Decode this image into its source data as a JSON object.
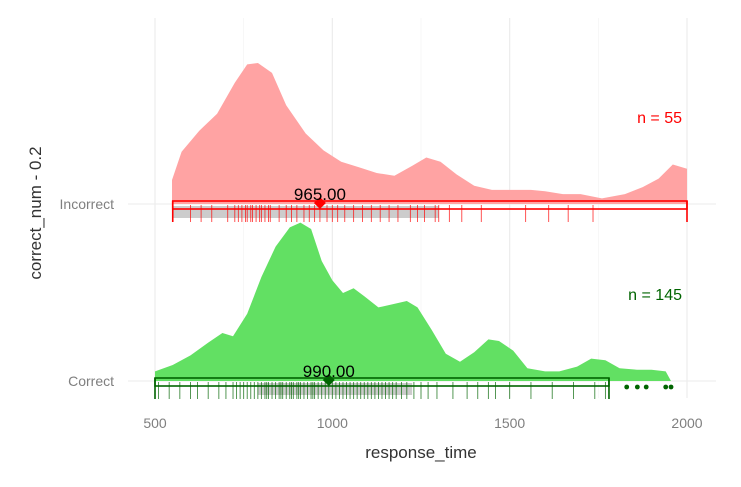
{
  "chart_data": {
    "type": "ridgeline",
    "xlabel": "response_time",
    "ylabel": "correct_num - 0.2",
    "xlim": [
      400,
      2000
    ],
    "xticks": [
      500,
      1000,
      1500,
      2000
    ],
    "xtick_labels": [
      "500",
      "1000",
      "1500",
      "2000"
    ],
    "grid": true,
    "groups": [
      {
        "name": "Incorrect",
        "fill": "#ffa3a3",
        "accent": "#ff0000",
        "n_label": "n = 55",
        "median": 965,
        "median_label": "965.00",
        "box": {
          "q1": 550,
          "median": 965,
          "q3": 1300,
          "whisker_low": 550,
          "whisker_high": 2000
        },
        "density": [
          [
            548,
            0.17
          ],
          [
            575,
            0.37
          ],
          [
            625,
            0.52
          ],
          [
            675,
            0.64
          ],
          [
            725,
            0.86
          ],
          [
            760,
            0.99
          ],
          [
            790,
            1.0
          ],
          [
            830,
            0.93
          ],
          [
            870,
            0.7
          ],
          [
            925,
            0.5
          ],
          [
            975,
            0.38
          ],
          [
            1025,
            0.3
          ],
          [
            1075,
            0.26
          ],
          [
            1125,
            0.22
          ],
          [
            1175,
            0.2
          ],
          [
            1225,
            0.27
          ],
          [
            1265,
            0.33
          ],
          [
            1305,
            0.3
          ],
          [
            1350,
            0.21
          ],
          [
            1400,
            0.13
          ],
          [
            1450,
            0.1
          ],
          [
            1500,
            0.1
          ],
          [
            1560,
            0.1
          ],
          [
            1600,
            0.09
          ],
          [
            1650,
            0.07
          ],
          [
            1700,
            0.07
          ],
          [
            1760,
            0.04
          ],
          [
            1825,
            0.07
          ],
          [
            1875,
            0.12
          ],
          [
            1920,
            0.18
          ],
          [
            1960,
            0.28
          ],
          [
            2000,
            0.25
          ]
        ],
        "rugs": [
          550,
          600,
          630,
          660,
          705,
          725,
          735,
          745,
          755,
          760,
          770,
          775,
          785,
          795,
          800,
          810,
          820,
          825,
          850,
          870,
          885,
          900,
          920,
          935,
          950,
          965,
          985,
          1000,
          1015,
          1035,
          1060,
          1085,
          1110,
          1135,
          1160,
          1185,
          1220,
          1240,
          1260,
          1290,
          1300,
          1330,
          1365,
          1420,
          1545,
          1610,
          1665,
          1735
        ]
      },
      {
        "name": "Correct",
        "fill": "#62e063",
        "accent": "#006400",
        "n_label": "n = 145",
        "median": 990,
        "median_label": "990.00",
        "box": {
          "q1": 790,
          "median": 990,
          "q3": 1225,
          "whisker_low": 500,
          "whisker_high": 1780
        },
        "outliers": [
          1830,
          1860,
          1885,
          1940,
          1955
        ],
        "density": [
          [
            500,
            0.06
          ],
          [
            550,
            0.1
          ],
          [
            600,
            0.16
          ],
          [
            650,
            0.24
          ],
          [
            690,
            0.3
          ],
          [
            720,
            0.28
          ],
          [
            760,
            0.42
          ],
          [
            800,
            0.65
          ],
          [
            840,
            0.84
          ],
          [
            880,
            0.96
          ],
          [
            910,
            0.99
          ],
          [
            940,
            0.95
          ],
          [
            970,
            0.75
          ],
          [
            1000,
            0.63
          ],
          [
            1030,
            0.55
          ],
          [
            1060,
            0.58
          ],
          [
            1090,
            0.53
          ],
          [
            1130,
            0.46
          ],
          [
            1170,
            0.48
          ],
          [
            1210,
            0.5
          ],
          [
            1240,
            0.46
          ],
          [
            1280,
            0.32
          ],
          [
            1320,
            0.17
          ],
          [
            1360,
            0.12
          ],
          [
            1400,
            0.18
          ],
          [
            1440,
            0.26
          ],
          [
            1470,
            0.25
          ],
          [
            1510,
            0.19
          ],
          [
            1550,
            0.08
          ],
          [
            1600,
            0.06
          ],
          [
            1640,
            0.06
          ],
          [
            1690,
            0.09
          ],
          [
            1730,
            0.14
          ],
          [
            1770,
            0.13
          ],
          [
            1810,
            0.08
          ],
          [
            1860,
            0.07
          ],
          [
            1900,
            0.07
          ],
          [
            1940,
            0.06
          ],
          [
            1955,
            0.0
          ]
        ],
        "rugs": [
          510,
          540,
          570,
          600,
          620,
          650,
          680,
          700,
          720,
          730,
          740,
          750,
          760,
          770,
          780,
          790,
          800,
          810,
          815,
          820,
          830,
          840,
          850,
          855,
          860,
          870,
          880,
          885,
          890,
          900,
          905,
          910,
          920,
          930,
          940,
          945,
          950,
          960,
          970,
          980,
          990,
          1000,
          1010,
          1020,
          1030,
          1040,
          1050,
          1060,
          1070,
          1080,
          1090,
          1100,
          1110,
          1120,
          1130,
          1140,
          1150,
          1160,
          1170,
          1180,
          1195,
          1210,
          1230,
          1250,
          1270,
          1295,
          1340,
          1380,
          1410,
          1440,
          1460,
          1500,
          1560,
          1620,
          1680,
          1740,
          1770
        ]
      }
    ]
  }
}
